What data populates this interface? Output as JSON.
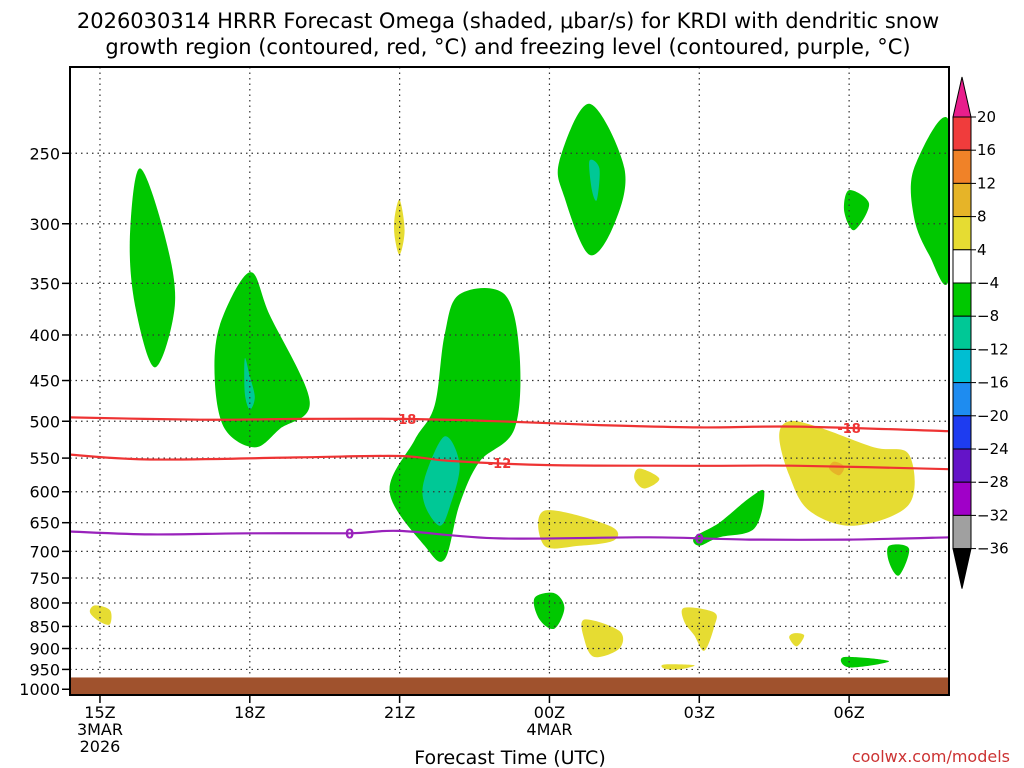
{
  "title_line1": "2026030314 HRRR Forecast Omega (shaded, μbar/s) for KRDI with dendritic snow",
  "title_line2": "growth region (contoured, red, °C) and freezing level (contoured, purple, °C)",
  "credit": "coolwx.com/models",
  "chart_data": {
    "type": "time-height contour",
    "xlabel": "Forecast Time (UTC)",
    "x_ticks": [
      {
        "label": "15Z",
        "sub1": "3MAR",
        "sub2": "2026",
        "hours": 0
      },
      {
        "label": "18Z",
        "sub1": "",
        "sub2": "",
        "hours": 3
      },
      {
        "label": "21Z",
        "sub1": "",
        "sub2": "",
        "hours": 6
      },
      {
        "label": "00Z",
        "sub1": "4MAR",
        "sub2": "",
        "hours": 9
      },
      {
        "label": "03Z",
        "sub1": "",
        "sub2": "",
        "hours": 12
      },
      {
        "label": "06Z",
        "sub1": "",
        "sub2": "",
        "hours": 15
      }
    ],
    "x_range_hours": [
      -0.6,
      17.0
    ],
    "y_levels": [
      250,
      300,
      350,
      400,
      450,
      500,
      550,
      600,
      650,
      700,
      750,
      800,
      850,
      900,
      950,
      1000
    ],
    "y_range_hPa": [
      200,
      1015
    ],
    "y_scale": "log-pressure",
    "grid": "dotted",
    "ground_level_hPa": 970,
    "colorbar": {
      "levels": [
        20,
        16,
        12,
        8,
        4,
        -4,
        -8,
        -12,
        -16,
        -20,
        -24,
        -28,
        -32,
        -36
      ],
      "colors": [
        "#e81e8c",
        "#f03c3c",
        "#f08228",
        "#e6b428",
        "#e6dc32",
        "#ffffff",
        "#00c800",
        "#00c896",
        "#00bed2",
        "#1e8cf0",
        "#1e3cf0",
        "#6414c8",
        "#a000c8",
        "#a0a0a0",
        "#000000"
      ]
    },
    "contours": [
      {
        "name": "-18",
        "color": "#ee3333",
        "label": "-18",
        "points": [
          [
            -0.6,
            495
          ],
          [
            2,
            498
          ],
          [
            4,
            497
          ],
          [
            6,
            497
          ],
          [
            8,
            500
          ],
          [
            10,
            505
          ],
          [
            12,
            508
          ],
          [
            14,
            507
          ],
          [
            17,
            513
          ]
        ]
      },
      {
        "name": "-12",
        "color": "#ee3333",
        "label": "-12",
        "points": [
          [
            -0.6,
            545
          ],
          [
            1,
            552
          ],
          [
            4,
            549
          ],
          [
            6,
            547
          ],
          [
            7,
            554
          ],
          [
            9,
            560
          ],
          [
            12,
            561
          ],
          [
            14,
            561
          ],
          [
            17,
            566
          ]
        ]
      },
      {
        "name": "0",
        "color": "#9922bb",
        "label": "0",
        "points": [
          [
            -0.6,
            665
          ],
          [
            1,
            670
          ],
          [
            3,
            668
          ],
          [
            5,
            668
          ],
          [
            6,
            664
          ],
          [
            8,
            677
          ],
          [
            11,
            675
          ],
          [
            13,
            679
          ],
          [
            15,
            679
          ],
          [
            17,
            675
          ]
        ]
      }
    ],
    "omega_regions": [
      {
        "value": "-4 to -8",
        "color": "#00c800",
        "points": [
          [
            0.6,
            310
          ],
          [
            0.8,
            260
          ],
          [
            1.3,
            310
          ],
          [
            1.5,
            370
          ],
          [
            1.1,
            435
          ],
          [
            0.7,
            370
          ]
        ]
      },
      {
        "value": "-4 to -8",
        "color": "#00c800",
        "points": [
          [
            2.4,
            390
          ],
          [
            3.0,
            340
          ],
          [
            3.4,
            380
          ],
          [
            4.2,
            475
          ],
          [
            3.6,
            510
          ],
          [
            3.1,
            535
          ],
          [
            2.5,
            510
          ],
          [
            2.3,
            450
          ]
        ]
      },
      {
        "value": "-8 to -12",
        "color": "#00c896",
        "points": [
          [
            2.9,
            425
          ],
          [
            3.0,
            445
          ],
          [
            3.1,
            470
          ],
          [
            3.0,
            485
          ],
          [
            2.9,
            465
          ]
        ]
      },
      {
        "value": "-4 to -8",
        "color": "#00c800",
        "points": [
          [
            6.9,
            400
          ],
          [
            7.2,
            360
          ],
          [
            8.1,
            360
          ],
          [
            8.4,
            420
          ],
          [
            8.3,
            510
          ],
          [
            7.6,
            555
          ],
          [
            7.2,
            620
          ],
          [
            6.9,
            715
          ],
          [
            6.5,
            690
          ],
          [
            5.8,
            600
          ],
          [
            6.3,
            525
          ],
          [
            6.7,
            480
          ]
        ]
      },
      {
        "value": "-8 to -12",
        "color": "#00c896",
        "points": [
          [
            6.5,
            580
          ],
          [
            6.9,
            520
          ],
          [
            7.2,
            560
          ],
          [
            7.0,
            625
          ],
          [
            6.8,
            655
          ],
          [
            6.5,
            620
          ]
        ]
      },
      {
        "value": "-4 to -8",
        "color": "#00c800",
        "points": [
          [
            9.2,
            255
          ],
          [
            9.8,
            220
          ],
          [
            10.5,
            260
          ],
          [
            10.3,
            300
          ],
          [
            9.8,
            325
          ],
          [
            9.3,
            280
          ]
        ]
      },
      {
        "value": "-8 to -12",
        "color": "#00c896",
        "points": [
          [
            9.8,
            255
          ],
          [
            10.0,
            260
          ],
          [
            9.95,
            282
          ],
          [
            9.85,
            275
          ]
        ]
      },
      {
        "value": "-4 to -8",
        "color": "#00c800",
        "points": [
          [
            15.0,
            275
          ],
          [
            15.4,
            285
          ],
          [
            15.1,
            305
          ],
          [
            14.9,
            290
          ]
        ]
      },
      {
        "value": "-4 to -8",
        "color": "#00c800",
        "points": [
          [
            16.3,
            260
          ],
          [
            17.0,
            230
          ],
          [
            17.0,
            345
          ],
          [
            16.6,
            325
          ],
          [
            16.3,
            295
          ]
        ]
      },
      {
        "value": "-4 to -8",
        "color": "#00c800",
        "points": [
          [
            11.9,
            675
          ],
          [
            12.4,
            650
          ],
          [
            13.0,
            610
          ],
          [
            13.3,
            600
          ],
          [
            13.1,
            660
          ],
          [
            12.4,
            675
          ],
          [
            12.0,
            690
          ]
        ]
      },
      {
        "value": "-4 to -8",
        "color": "#00c800",
        "points": [
          [
            15.8,
            690
          ],
          [
            16.2,
            695
          ],
          [
            16.0,
            745
          ],
          [
            15.8,
            720
          ]
        ]
      },
      {
        "value": "-4 to -8",
        "color": "#00c800",
        "points": [
          [
            8.7,
            790
          ],
          [
            9.1,
            780
          ],
          [
            9.3,
            810
          ],
          [
            9.1,
            855
          ],
          [
            8.8,
            835
          ]
        ]
      },
      {
        "value": "-4 to -8",
        "color": "#00c800",
        "points": [
          [
            14.9,
            920
          ],
          [
            15.8,
            930
          ],
          [
            15.0,
            945
          ]
        ]
      },
      {
        "value": "4 to 8",
        "color": "#e6dc32",
        "points": [
          [
            5.9,
            295
          ],
          [
            6.0,
            282
          ],
          [
            6.1,
            305
          ],
          [
            6.0,
            325
          ],
          [
            5.9,
            310
          ]
        ]
      },
      {
        "value": "4 to 8",
        "color": "#e6dc32",
        "points": [
          [
            13.8,
            500
          ],
          [
            14.4,
            508
          ],
          [
            15.5,
            535
          ],
          [
            16.2,
            545
          ],
          [
            16.2,
            620
          ],
          [
            15.1,
            655
          ],
          [
            14.2,
            630
          ],
          [
            13.8,
            575
          ],
          [
            13.6,
            520
          ]
        ]
      },
      {
        "value": "8 to 12",
        "color": "#e6b428",
        "points": [
          [
            14.7,
            555
          ],
          [
            14.9,
            562
          ],
          [
            14.8,
            575
          ],
          [
            14.6,
            565
          ]
        ]
      },
      {
        "value": "4 to 8",
        "color": "#e6dc32",
        "points": [
          [
            8.9,
            630
          ],
          [
            10.2,
            655
          ],
          [
            10.3,
            680
          ],
          [
            9.6,
            690
          ],
          [
            8.9,
            690
          ]
        ]
      },
      {
        "value": "4 to 8",
        "color": "#e6dc32",
        "points": [
          [
            10.8,
            565
          ],
          [
            11.2,
            580
          ],
          [
            10.9,
            595
          ],
          [
            10.7,
            580
          ]
        ]
      },
      {
        "value": "4 to 8",
        "color": "#e6dc32",
        "points": [
          [
            -0.1,
            805
          ],
          [
            0.2,
            815
          ],
          [
            0.2,
            845
          ],
          [
            0.0,
            840
          ],
          [
            -0.2,
            820
          ]
        ]
      },
      {
        "value": "4 to 8",
        "color": "#e6dc32",
        "points": [
          [
            9.7,
            835
          ],
          [
            10.4,
            860
          ],
          [
            10.4,
            900
          ],
          [
            9.9,
            920
          ],
          [
            9.7,
            880
          ]
        ]
      },
      {
        "value": "4 to 8",
        "color": "#e6dc32",
        "points": [
          [
            11.7,
            810
          ],
          [
            12.3,
            820
          ],
          [
            12.3,
            850
          ],
          [
            12.1,
            905
          ],
          [
            11.9,
            870
          ],
          [
            11.7,
            840
          ]
        ]
      },
      {
        "value": "4 to 8",
        "color": "#e6dc32",
        "points": [
          [
            13.9,
            865
          ],
          [
            14.1,
            870
          ],
          [
            13.95,
            895
          ],
          [
            13.8,
            875
          ]
        ]
      },
      {
        "value": "4 to 8",
        "color": "#e6dc32",
        "points": [
          [
            11.3,
            938
          ],
          [
            11.9,
            940
          ],
          [
            11.6,
            950
          ],
          [
            11.3,
            948
          ]
        ]
      }
    ]
  }
}
